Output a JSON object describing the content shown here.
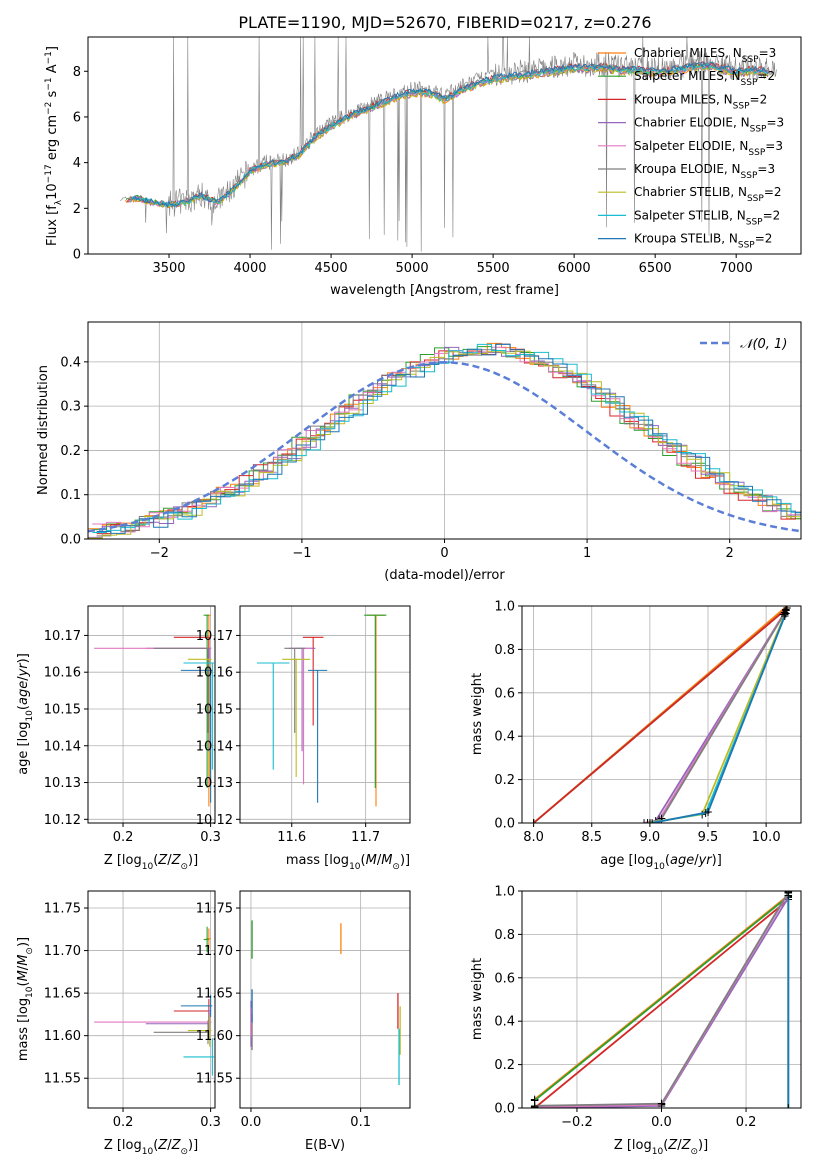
{
  "figure": {
    "title": "PLATE=1190, MJD=52670, FIBERID=0217, z=0.276"
  },
  "model_colors": [
    "#ff7f0e",
    "#2ca02c",
    "#d62728",
    "#9467bd",
    "#e377c2",
    "#7f7f7f",
    "#bcbd22",
    "#17becf",
    "#1f77b4"
  ],
  "chart_data": [
    {
      "id": "spectrum",
      "type": "line",
      "xlabel": "wavelength [Angstrom, rest frame]",
      "ylabel": "Flux [f_λ10^-17 erg cm^-2 s^-1 A^-1]",
      "xlim": [
        3000,
        7400
      ],
      "ylim": [
        0,
        9.5
      ],
      "xticks": [
        3500,
        4000,
        4500,
        5000,
        5500,
        6000,
        6500,
        7000
      ],
      "yticks": [
        0,
        2,
        4,
        6,
        8
      ],
      "grid": false,
      "legend_position": "upper-right",
      "data_color": "#808080",
      "continuum": {
        "x": [
          3200,
          3300,
          3400,
          3500,
          3600,
          3700,
          3800,
          3900,
          4000,
          4100,
          4200,
          4300,
          4400,
          4500,
          4600,
          4700,
          4800,
          4900,
          5000,
          5100,
          5200,
          5300,
          5400,
          5500,
          5600,
          5700,
          5800,
          5900,
          6000,
          6100,
          6200,
          6300,
          6400,
          6500,
          6600,
          6700,
          6800,
          6900,
          7000,
          7100,
          7200
        ],
        "y": [
          2.4,
          2.5,
          2.3,
          2.2,
          2.3,
          2.6,
          2.3,
          2.9,
          3.7,
          4.0,
          4.1,
          4.4,
          5.2,
          5.7,
          6.1,
          6.4,
          6.7,
          7.0,
          7.2,
          7.2,
          6.9,
          7.3,
          7.6,
          7.8,
          7.9,
          8.0,
          8.1,
          8.2,
          8.3,
          8.3,
          8.3,
          8.2,
          8.2,
          8.1,
          8.2,
          8.3,
          8.4,
          8.3,
          8.1,
          8.2,
          8.1
        ]
      },
      "series": [
        {
          "name": "Chabrier MILES, N_SSP=3"
        },
        {
          "name": "Salpeter MILES, N_SSP=2"
        },
        {
          "name": "Kroupa MILES, N_SSP=2"
        },
        {
          "name": "Chabrier ELODIE, N_SSP=3"
        },
        {
          "name": "Salpeter ELODIE, N_SSP=3"
        },
        {
          "name": "Kroupa ELODIE, N_SSP=3"
        },
        {
          "name": "Chabrier STELIB, N_SSP=2"
        },
        {
          "name": "Salpeter STELIB, N_SSP=2"
        },
        {
          "name": "Kroupa STELIB, N_SSP=2"
        }
      ]
    },
    {
      "id": "residuals",
      "type": "line",
      "xlabel": "(data-model)/error",
      "ylabel": "Normed distribution",
      "xlim": [
        -2.5,
        2.5
      ],
      "ylim": [
        0,
        0.49
      ],
      "xticks": [
        -2,
        -1,
        0,
        1,
        2
      ],
      "yticks": [
        0.0,
        0.1,
        0.2,
        0.3,
        0.4
      ],
      "grid": true,
      "legend_position": "upper-right",
      "gaussian": {
        "name": "N(0,1)",
        "mu": 0,
        "sigma": 1,
        "color": "#5b7fd6"
      },
      "histogram_shape": {
        "mu": 0.3,
        "sigma": 1.08,
        "peak": 0.43
      }
    },
    {
      "id": "age-vs-Z",
      "type": "scatter",
      "xlabel": "Z [log10(Z/Z⊙)]",
      "ylabel": "age  [log10(age/yr)]",
      "xlim": [
        0.16,
        0.305
      ],
      "ylim": [
        10.119,
        10.178
      ],
      "xticks": [
        0.2,
        0.3
      ],
      "yticks": [
        10.12,
        10.13,
        10.14,
        10.15,
        10.16,
        10.17
      ],
      "grid": true
    },
    {
      "id": "age-vs-mass",
      "type": "scatter",
      "xlabel": "mass [log10(M/M⊙)]",
      "ylabel": "",
      "xlim": [
        11.53,
        11.76
      ],
      "ylim": [
        10.119,
        10.178
      ],
      "xticks": [
        11.6,
        11.7
      ],
      "yticks": [
        10.12,
        10.13,
        10.14,
        10.15,
        10.16,
        10.17
      ],
      "grid": true
    },
    {
      "id": "mass-weight-vs-age",
      "type": "line",
      "xlabel": "age  [log10(age/yr)]",
      "ylabel": "mass weight",
      "xlim": [
        7.9,
        10.3
      ],
      "ylim": [
        0,
        1.0
      ],
      "xticks": [
        8.0,
        8.5,
        9.0,
        9.5,
        10.0
      ],
      "yticks": [
        0.0,
        0.2,
        0.4,
        0.6,
        0.8,
        1.0
      ],
      "grid": true,
      "series": [
        {
          "x": [
            8.0,
            10.18
          ],
          "y": [
            0.0,
            1.0
          ]
        },
        {
          "x": [
            8.0,
            10.18
          ],
          "y": [
            0.0,
            0.99
          ]
        },
        {
          "x": [
            8.0,
            10.17
          ],
          "y": [
            0.0,
            0.985
          ]
        },
        {
          "x": [
            8.95,
            9.05,
            10.17
          ],
          "y": [
            0.0,
            0.01,
            0.98
          ]
        },
        {
          "x": [
            8.98,
            9.08,
            10.16
          ],
          "y": [
            0.0,
            0.015,
            0.97
          ]
        },
        {
          "x": [
            9.0,
            9.1,
            10.15
          ],
          "y": [
            0.0,
            0.02,
            0.96
          ]
        },
        {
          "x": [
            8.98,
            9.45,
            10.16
          ],
          "y": [
            0.0,
            0.04,
            0.96
          ]
        },
        {
          "x": [
            9.0,
            9.48,
            10.17
          ],
          "y": [
            0.0,
            0.045,
            0.965
          ]
        },
        {
          "x": [
            9.02,
            9.5,
            10.16
          ],
          "y": [
            0.0,
            0.05,
            0.955
          ]
        }
      ]
    },
    {
      "id": "mass-vs-Z",
      "type": "scatter",
      "xlabel": "Z [log10(Z/Z⊙)]",
      "ylabel": "mass [log10(M/M⊙)]",
      "xlim": [
        0.16,
        0.305
      ],
      "ylim": [
        11.515,
        11.77
      ],
      "xticks": [
        0.2,
        0.3
      ],
      "yticks": [
        11.55,
        11.6,
        11.65,
        11.7,
        11.75
      ],
      "grid": true
    },
    {
      "id": "mass-vs-ebv",
      "type": "scatter",
      "xlabel": "E(B-V)",
      "ylabel": "",
      "xlim": [
        -0.01,
        0.145
      ],
      "ylim": [
        11.515,
        11.77
      ],
      "xticks": [
        0.0,
        0.1
      ],
      "yticks": [
        11.55,
        11.6,
        11.65,
        11.7,
        11.75
      ],
      "grid": true
    },
    {
      "id": "mass-weight-vs-Z",
      "type": "line",
      "xlabel": "Z [log10(Z/Z⊙)]",
      "ylabel": "mass weight",
      "xlim": [
        -0.33,
        0.33
      ],
      "ylim": [
        0,
        1.0
      ],
      "xticks": [
        -0.2,
        0.0,
        0.2
      ],
      "yticks": [
        0.0,
        0.2,
        0.4,
        0.6,
        0.8,
        1.0
      ],
      "grid": true,
      "series": [
        {
          "x": [
            -0.3,
            0.3
          ],
          "y": [
            0.04,
            0.98
          ]
        },
        {
          "x": [
            -0.3,
            0.3
          ],
          "y": [
            0.035,
            0.975
          ]
        },
        {
          "x": [
            -0.3,
            0.3
          ],
          "y": [
            0.0,
            0.96
          ]
        },
        {
          "x": [
            -0.3,
            0.0,
            0.3
          ],
          "y": [
            0.0,
            0.01,
            0.97
          ]
        },
        {
          "x": [
            -0.3,
            0.0,
            0.3
          ],
          "y": [
            0.005,
            0.015,
            0.99
          ]
        },
        {
          "x": [
            -0.3,
            0.0,
            0.3
          ],
          "y": [
            0.01,
            0.02,
            0.995
          ]
        },
        {
          "x": [
            0.3,
            0.3
          ],
          "y": [
            0.0,
            1.0
          ]
        },
        {
          "x": [
            0.3,
            0.3
          ],
          "y": [
            0.0,
            0.99
          ]
        },
        {
          "x": [
            0.3,
            0.3
          ],
          "y": [
            0.0,
            0.98
          ]
        }
      ]
    }
  ],
  "estimates": {
    "ages": [
      10.1755,
      10.1755,
      10.1695,
      10.1665,
      10.1665,
      10.1665,
      10.1635,
      10.1625,
      10.1605
    ],
    "age_err_lo": [
      0.052,
      0.047,
      0.024,
      0.028,
      0.037,
      0.023,
      0.032,
      0.029,
      0.036
    ],
    "zs": [
      0.298,
      0.296,
      0.298,
      0.298,
      0.299,
      0.297,
      0.299,
      0.302,
      0.3
    ],
    "z_err_lo": [
      0.003,
      0.004,
      0.04,
      0.072,
      0.132,
      0.062,
      0.025,
      0.033,
      0.034
    ],
    "masses": [
      11.714,
      11.713,
      11.629,
      11.614,
      11.616,
      11.604,
      11.606,
      11.575,
      11.635
    ],
    "mass_err": [
      0.012,
      0.015,
      0.014,
      0.018,
      0.011,
      0.014,
      0.019,
      0.022,
      0.013
    ],
    "ebv": [
      0.082,
      0.001,
      0.134,
      0.0,
      0.0,
      0.001,
      0.136,
      0.135,
      0.001
    ]
  }
}
